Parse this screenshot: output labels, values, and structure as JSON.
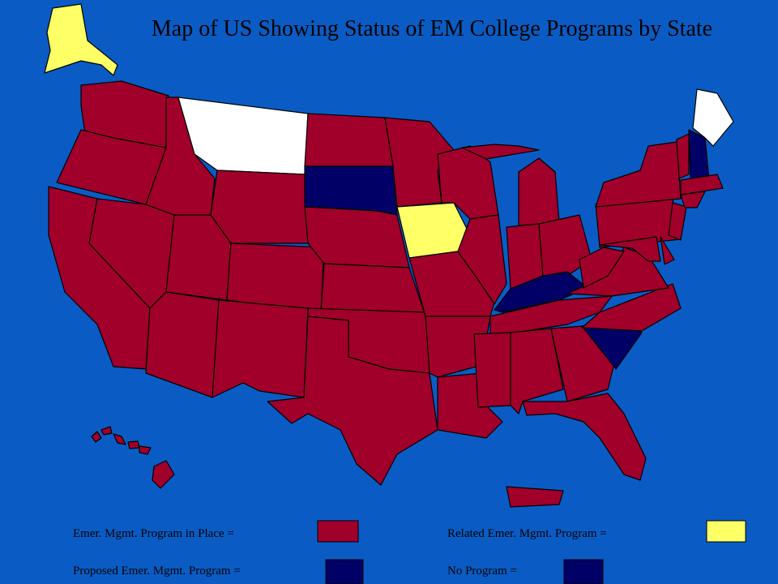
{
  "title": "Map of US Showing Status of EM College Programs by State",
  "legend": [
    {
      "label": "Emer. Mgmt. Program in Place =",
      "color": "#a0002a"
    },
    {
      "label": "Related Emer. Mgmt. Program =",
      "color": "#ffff66"
    },
    {
      "label": "Proposed Emer. Mgmt. Program =",
      "color": "#000066"
    },
    {
      "label": "No Program =",
      "color": "#000066"
    }
  ]
}
